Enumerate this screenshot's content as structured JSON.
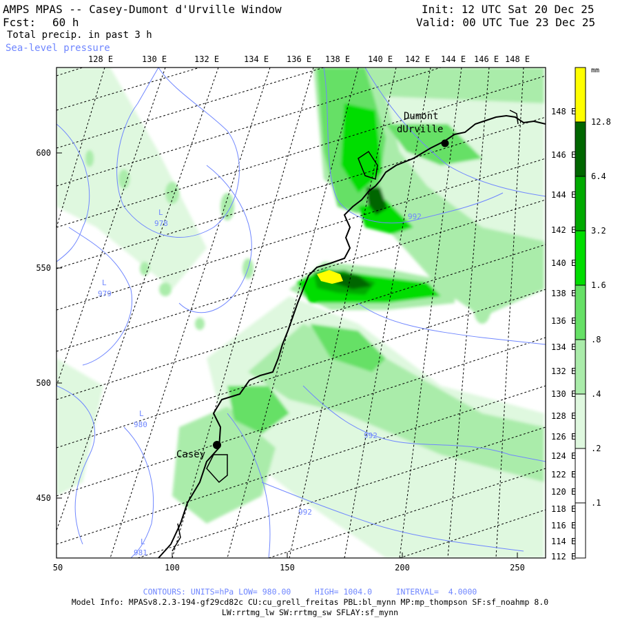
{
  "header": {
    "title": "AMPS MPAS -- Casey-Dumont d'Urville Window",
    "forecast_label": "Fcst:",
    "forecast_value": "60 h",
    "init": "Init: 12 UTC Sat 20 Dec 25",
    "valid": "Valid: 00 UTC Tue 23 Dec 25",
    "field1": "Total precip. in past 3 h",
    "field2": "Sea-level pressure"
  },
  "map": {
    "top_longitudes": [
      "128 E",
      "130 E",
      "132 E",
      "134 E",
      "136 E",
      "138 E",
      "140 E",
      "142 E",
      "144 E",
      "146 E",
      "148 E"
    ],
    "right_longitudes": [
      "148 E",
      "146 E",
      "144 E",
      "142 E",
      "140 E",
      "138 E",
      "136 E",
      "134 E",
      "132 E",
      "130 E",
      "128 E",
      "126 E",
      "124 E",
      "122 E",
      "120 E",
      "118 E",
      "116 E",
      "114 E",
      "112 E"
    ],
    "x_ticks": [
      "50",
      "100",
      "150",
      "200",
      "250"
    ],
    "y_ticks": [
      "600",
      "550",
      "500",
      "450"
    ],
    "stations": [
      {
        "name_line1": "Dumont",
        "name_line2": "dUrville"
      },
      {
        "name_line1": "Casey",
        "name_line2": ""
      }
    ],
    "lows": [
      {
        "label": "L",
        "value": "978"
      },
      {
        "label": "L",
        "value": "979"
      },
      {
        "label": "L",
        "value": "980"
      },
      {
        "label": "L",
        "value": "981"
      }
    ],
    "isobar_labels": [
      "992",
      "992",
      "992"
    ]
  },
  "colorbar": {
    "unit": "mm",
    "levels": [
      "12.8",
      "6.4",
      "3.2",
      "1.6",
      ".8",
      ".4",
      ".2",
      ".1"
    ],
    "colors": [
      "#ffff00",
      "#006600",
      "#00aa00",
      "#00dd00",
      "#66e066",
      "#aaecaa",
      "#dff8df",
      "#ffffff"
    ]
  },
  "footer": {
    "contours": "CONTOURS: UNITS=hPa LOW= 980.00     HIGH= 1004.0     INTERVAL=  4.0000",
    "model_info": "Model Info: MPASv8.2.3-194-gf29cd82c CU:cu_grell_freitas PBL:bl_mynn MP:mp_thompson SF:sf_noahmp 8.0",
    "physics": "LW:rrtmg_lw SW:rrtmg_sw SFLAY:sf_mynn"
  }
}
